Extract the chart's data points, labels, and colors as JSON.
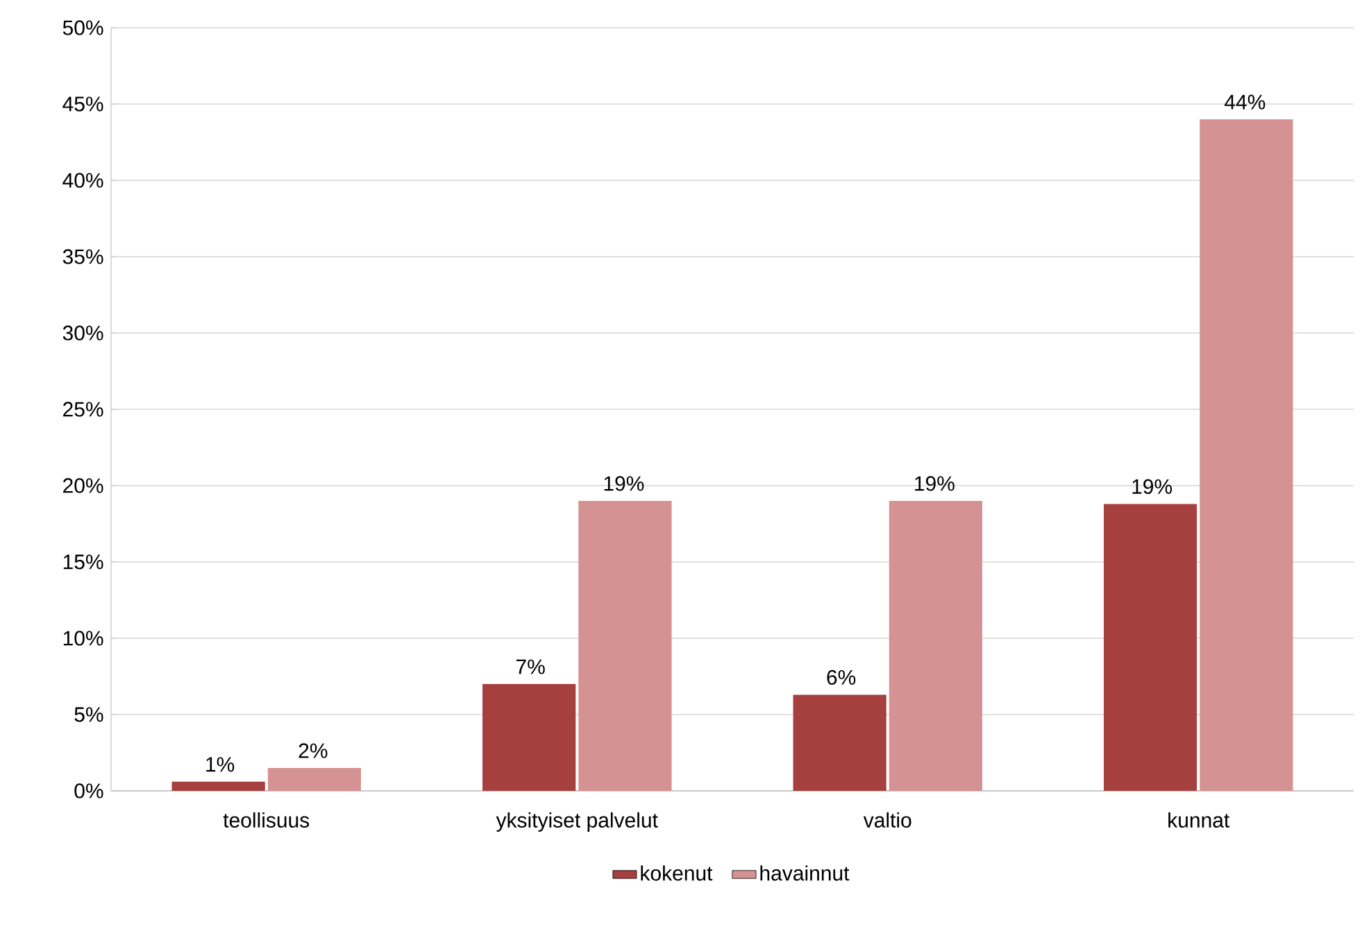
{
  "chart_data": {
    "type": "bar",
    "categories": [
      "teollisuus",
      "yksityiset palvelut",
      "valtio",
      "kunnat"
    ],
    "series": [
      {
        "name": "kokenut",
        "color": "#a5403e",
        "values": [
          0.6,
          7.0,
          6.3,
          18.8
        ],
        "value_labels": [
          "1%",
          "7%",
          "6%",
          "19%"
        ]
      },
      {
        "name": "havainnut",
        "color": "#d49392",
        "values": [
          1.5,
          19.0,
          19.0,
          44.0
        ],
        "value_labels": [
          "2%",
          "19%",
          "19%",
          "44%"
        ]
      }
    ],
    "ylim": [
      0,
      50
    ],
    "yticks": [
      {
        "value": 0,
        "label": "0%"
      },
      {
        "value": 5,
        "label": "5%"
      },
      {
        "value": 10,
        "label": "10%"
      },
      {
        "value": 15,
        "label": "15%"
      },
      {
        "value": 20,
        "label": "20%"
      },
      {
        "value": 25,
        "label": "25%"
      },
      {
        "value": 30,
        "label": "30%"
      },
      {
        "value": 35,
        "label": "35%"
      },
      {
        "value": 40,
        "label": "40%"
      },
      {
        "value": 45,
        "label": "45%"
      },
      {
        "value": 50,
        "label": "50%"
      }
    ],
    "grid": "y",
    "legend": "bottom"
  }
}
